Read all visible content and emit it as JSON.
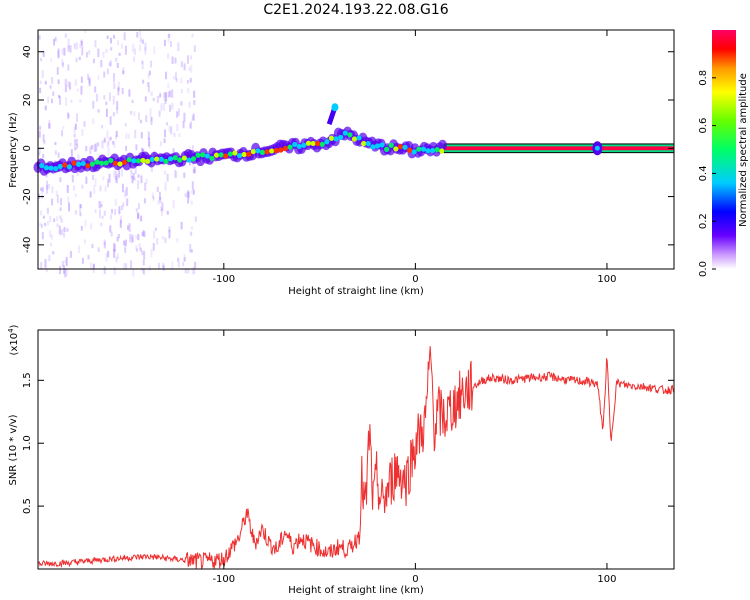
{
  "title": "C2E1.2024.193.22.08.G16",
  "chart_data": [
    {
      "type": "heatmap",
      "xlabel": "Height of straight line (km)",
      "ylabel": "Frequency (Hz)",
      "xlim": [
        -197,
        135
      ],
      "ylim": [
        -50,
        49
      ],
      "xticks": [
        -100,
        0,
        100
      ],
      "yticks": [
        -40,
        -20,
        0,
        20,
        40
      ],
      "colorbar": {
        "label": "Normalized spectral amplitude",
        "range": [
          0,
          1
        ],
        "ticks": [
          "0.0",
          "0.2",
          "0.4",
          "0.6",
          "0.8"
        ]
      },
      "ridge": {
        "x": [
          -197,
          -180,
          -160,
          -140,
          -120,
          -100,
          -90,
          -80,
          -70,
          -60,
          -50,
          -45,
          -40,
          -35,
          -30,
          -25,
          -20,
          -10,
          0,
          5,
          10,
          15,
          135
        ],
        "y": [
          -8,
          -7,
          -6,
          -5,
          -4,
          -3,
          -2,
          -1,
          0,
          1,
          2,
          3,
          5,
          6,
          4,
          2,
          1,
          0,
          -1,
          0,
          -1,
          0,
          0
        ]
      },
      "spike": {
        "x": [
          -45,
          -42
        ],
        "y": [
          10,
          17
        ]
      }
    },
    {
      "type": "line",
      "xlabel": "Height of straight line (km)",
      "ylabel": "SNR (10 * v/v)",
      "multiplier": "(x10",
      "multiplier_exp": "4",
      "xlim": [
        -197,
        135
      ],
      "ylim": [
        0,
        19000
      ],
      "xticks": [
        -100,
        0,
        100
      ],
      "yticks": [
        "0.5",
        "1.0",
        "1.5"
      ],
      "series": [
        {
          "color": "#ee3030",
          "x": [
            -197,
            -180,
            -160,
            -140,
            -120,
            -110,
            -100,
            -92,
            -88,
            -84,
            -80,
            -76,
            -72,
            -68,
            -64,
            -60,
            -55,
            -50,
            -45,
            -40,
            -35,
            -30,
            -28,
            -26,
            -24,
            -22,
            -20,
            -18,
            -15,
            -10,
            -5,
            0,
            5,
            8,
            10,
            12,
            15,
            20,
            25,
            30,
            35,
            40,
            50,
            60,
            70,
            80,
            90,
            95,
            98,
            100,
            102,
            105,
            110,
            120,
            130,
            135
          ],
          "y": [
            400,
            500,
            800,
            1000,
            700,
            600,
            800,
            2500,
            4500,
            2000,
            3200,
            2000,
            1500,
            3000,
            1800,
            2500,
            2000,
            1600,
            1200,
            1800,
            1500,
            2500,
            7000,
            4500,
            11000,
            5000,
            7500,
            5000,
            6000,
            8000,
            7000,
            10000,
            11500,
            17000,
            11000,
            12500,
            12000,
            13000,
            14000,
            14500,
            15000,
            15200,
            15000,
            15200,
            15300,
            15000,
            14900,
            14700,
            11000,
            17000,
            10000,
            14800,
            14600,
            14500,
            14200,
            14300
          ]
        }
      ]
    }
  ]
}
